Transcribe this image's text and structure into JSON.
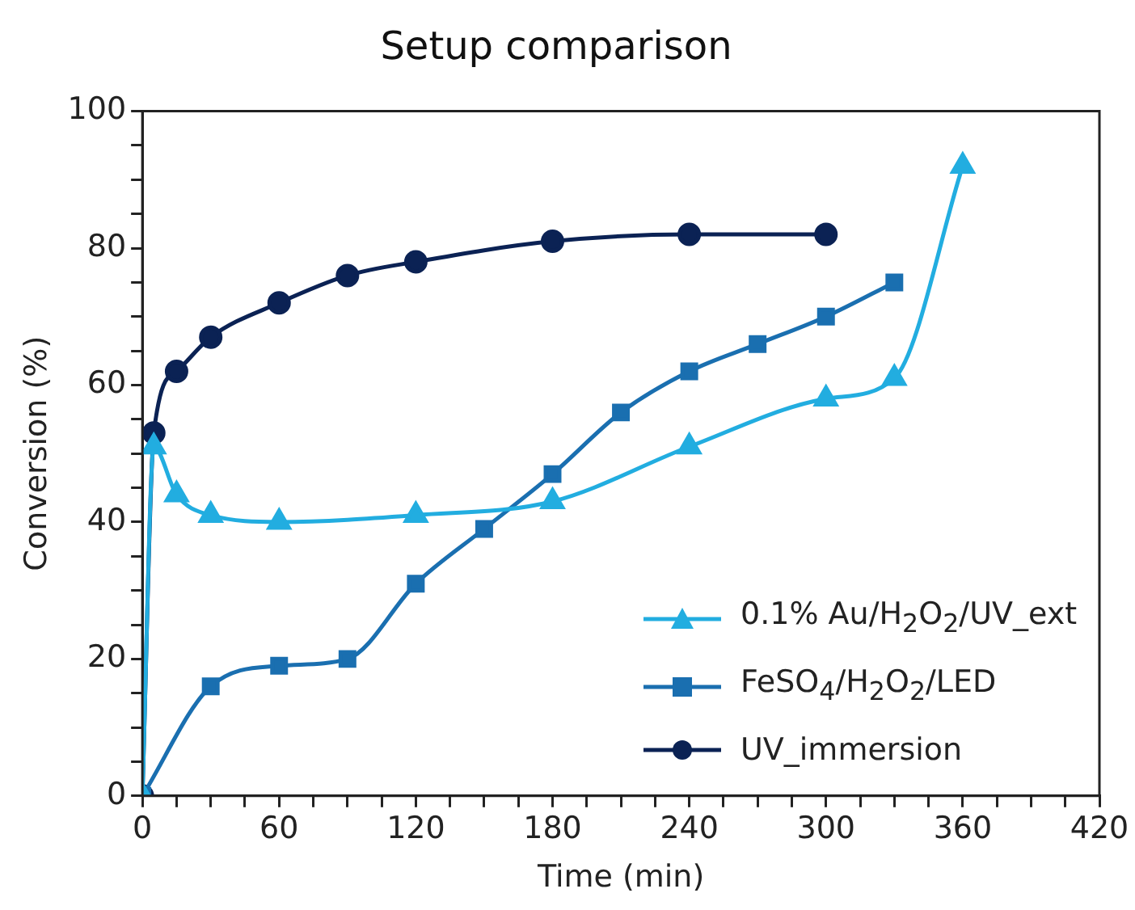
{
  "chart_data": {
    "type": "line",
    "title": "Setup comparison",
    "xlabel": "Time (min)",
    "ylabel": "Conversion (%)",
    "xlim": [
      0,
      420
    ],
    "ylim": [
      0,
      100
    ],
    "xticks": [
      0,
      {
        "value": 15,
        "label": null
      },
      {
        "value": 30,
        "label": null
      },
      {
        "value": 45,
        "label": null
      },
      60,
      {
        "value": 75,
        "label": null
      },
      {
        "value": 90,
        "label": null
      },
      {
        "value": 105,
        "label": null
      },
      120,
      {
        "value": 135,
        "label": null
      },
      {
        "value": 150,
        "label": null
      },
      {
        "value": 165,
        "label": null
      },
      180,
      {
        "value": 195,
        "label": null
      },
      {
        "value": 210,
        "label": null
      },
      {
        "value": 225,
        "label": null
      },
      240,
      {
        "value": 255,
        "label": null
      },
      {
        "value": 270,
        "label": null
      },
      {
        "value": 285,
        "label": null
      },
      300,
      {
        "value": 315,
        "label": null
      },
      {
        "value": 330,
        "label": null
      },
      {
        "value": 345,
        "label": null
      },
      360,
      {
        "value": 375,
        "label": null
      },
      {
        "value": 390,
        "label": null
      },
      {
        "value": 405,
        "label": null
      },
      420
    ],
    "yticks": [
      0,
      {
        "value": 5,
        "label": null
      },
      {
        "value": 10,
        "label": null
      },
      {
        "value": 15,
        "label": null
      },
      20,
      {
        "value": 25,
        "label": null
      },
      {
        "value": 30,
        "label": null
      },
      {
        "value": 35,
        "label": null
      },
      40,
      {
        "value": 45,
        "label": null
      },
      {
        "value": 50,
        "label": null
      },
      {
        "value": 55,
        "label": null
      },
      60,
      {
        "value": 65,
        "label": null
      },
      {
        "value": 70,
        "label": null
      },
      {
        "value": 75,
        "label": null
      },
      80,
      {
        "value": 85,
        "label": null
      },
      {
        "value": 90,
        "label": null
      },
      {
        "value": 95,
        "label": null
      },
      100
    ],
    "grid": false,
    "legend": "bottom right",
    "line_style": "solid",
    "series": [
      {
        "name": "0.1% Au/H$_{2}$O$_{2}$/UV_ext",
        "color": "#22ade0",
        "marker": "triangle",
        "x": [
          0,
          5,
          15,
          30,
          60,
          120,
          180,
          240,
          300,
          330,
          360
        ],
        "values": [
          0,
          51,
          44,
          41,
          40,
          41,
          43,
          51,
          58,
          61,
          92
        ]
      },
      {
        "name": "FeSO$_{4}$/H$_{2}$O$_{2}$/LED",
        "color": "#1a6fb0",
        "marker": "square",
        "x": [
          0,
          30,
          60,
          90,
          120,
          150,
          180,
          210,
          240,
          270,
          300,
          330
        ],
        "values": [
          0,
          16,
          19,
          20,
          31,
          39,
          47,
          56,
          62,
          66,
          70,
          75
        ]
      },
      {
        "name": "UV_immersion",
        "color": "#0b2254",
        "marker": "circle",
        "x": [
          0,
          5,
          15,
          30,
          60,
          90,
          120,
          180,
          240,
          300
        ],
        "values": [
          0,
          53,
          62,
          67,
          72,
          76,
          78,
          81,
          82,
          82
        ]
      }
    ]
  }
}
